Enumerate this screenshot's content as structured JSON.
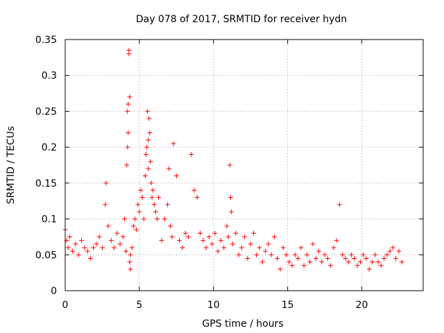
{
  "chart_data": {
    "type": "scatter",
    "title": "Day 078 of 2017, SRMTID for receiver hydn",
    "xlabel": "GPS time / hours",
    "ylabel": "SRMTID / TECUs",
    "xlim": [
      0,
      24.14
    ],
    "ylim": [
      0,
      0.35
    ],
    "xticks": [
      0,
      5,
      10,
      15,
      20
    ],
    "xtick_labels": [
      "0",
      "5",
      "10",
      "15",
      "20"
    ],
    "yticks": [
      0,
      0.05,
      0.1,
      0.15,
      0.2,
      0.25,
      0.3,
      0.35
    ],
    "ytick_labels": [
      "0",
      "0.05",
      "0.1",
      "0.15",
      "0.2",
      "0.25",
      "0.3",
      "0.35"
    ],
    "grid": true,
    "marker": "+",
    "marker_color": "#ff0000",
    "series": [
      {
        "name": "SRMTID",
        "x": [
          0.0,
          0.1,
          0.2,
          0.3,
          0.5,
          0.7,
          0.9,
          1.1,
          1.3,
          1.5,
          1.7,
          1.9,
          2.1,
          2.3,
          2.5,
          2.7,
          2.75,
          2.9,
          3.1,
          3.3,
          3.5,
          3.7,
          3.9,
          4.0,
          4.1,
          4.15,
          4.2,
          4.2,
          4.25,
          4.25,
          4.3,
          4.3,
          4.35,
          4.35,
          4.4,
          4.4,
          4.5,
          4.6,
          4.7,
          4.8,
          4.9,
          5.0,
          5.1,
          5.2,
          5.3,
          5.4,
          5.45,
          5.5,
          5.55,
          5.6,
          5.6,
          5.65,
          5.7,
          5.75,
          5.8,
          5.85,
          5.9,
          6.0,
          6.1,
          6.2,
          6.3,
          6.5,
          6.7,
          6.9,
          7.0,
          7.1,
          7.2,
          7.3,
          7.5,
          7.7,
          7.9,
          8.1,
          8.3,
          8.5,
          8.7,
          8.9,
          9.1,
          9.3,
          9.5,
          9.7,
          9.9,
          10.1,
          10.3,
          10.5,
          10.7,
          10.9,
          11.0,
          11.1,
          11.15,
          11.2,
          11.3,
          11.5,
          11.7,
          11.9,
          12.1,
          12.3,
          12.5,
          12.7,
          12.9,
          13.1,
          13.3,
          13.5,
          13.7,
          13.9,
          14.1,
          14.3,
          14.5,
          14.7,
          14.9,
          15.1,
          15.3,
          15.5,
          15.7,
          15.9,
          16.1,
          16.3,
          16.5,
          16.7,
          16.9,
          17.1,
          17.3,
          17.5,
          17.7,
          17.9,
          18.1,
          18.3,
          18.5,
          18.7,
          18.9,
          19.1,
          19.3,
          19.5,
          19.7,
          19.9,
          20.1,
          20.3,
          20.5,
          20.7,
          20.9,
          21.1,
          21.3,
          21.5,
          21.7,
          21.9,
          22.1,
          22.3,
          22.5,
          22.7
        ],
        "y": [
          0.085,
          0.07,
          0.06,
          0.075,
          0.055,
          0.065,
          0.05,
          0.07,
          0.06,
          0.055,
          0.045,
          0.06,
          0.065,
          0.075,
          0.06,
          0.12,
          0.15,
          0.09,
          0.07,
          0.06,
          0.08,
          0.065,
          0.075,
          0.1,
          0.055,
          0.175,
          0.2,
          0.25,
          0.22,
          0.26,
          0.33,
          0.335,
          0.27,
          0.04,
          0.03,
          0.05,
          0.06,
          0.09,
          0.1,
          0.085,
          0.12,
          0.11,
          0.14,
          0.13,
          0.1,
          0.16,
          0.19,
          0.2,
          0.25,
          0.21,
          0.17,
          0.24,
          0.22,
          0.18,
          0.15,
          0.13,
          0.14,
          0.12,
          0.11,
          0.1,
          0.13,
          0.07,
          0.1,
          0.12,
          0.17,
          0.09,
          0.075,
          0.205,
          0.16,
          0.07,
          0.06,
          0.08,
          0.075,
          0.19,
          0.14,
          0.13,
          0.08,
          0.07,
          0.06,
          0.075,
          0.065,
          0.08,
          0.055,
          0.07,
          0.06,
          0.09,
          0.075,
          0.175,
          0.13,
          0.11,
          0.065,
          0.08,
          0.05,
          0.06,
          0.075,
          0.045,
          0.065,
          0.08,
          0.05,
          0.06,
          0.04,
          0.055,
          0.065,
          0.05,
          0.075,
          0.045,
          0.03,
          0.06,
          0.05,
          0.04,
          0.035,
          0.05,
          0.045,
          0.06,
          0.035,
          0.05,
          0.04,
          0.065,
          0.045,
          0.055,
          0.04,
          0.05,
          0.045,
          0.035,
          0.06,
          0.07,
          0.12,
          0.05,
          0.045,
          0.04,
          0.05,
          0.045,
          0.035,
          0.04,
          0.05,
          0.045,
          0.03,
          0.04,
          0.05,
          0.04,
          0.035,
          0.045,
          0.05,
          0.055,
          0.06,
          0.045,
          0.055,
          0.04
        ]
      }
    ]
  }
}
